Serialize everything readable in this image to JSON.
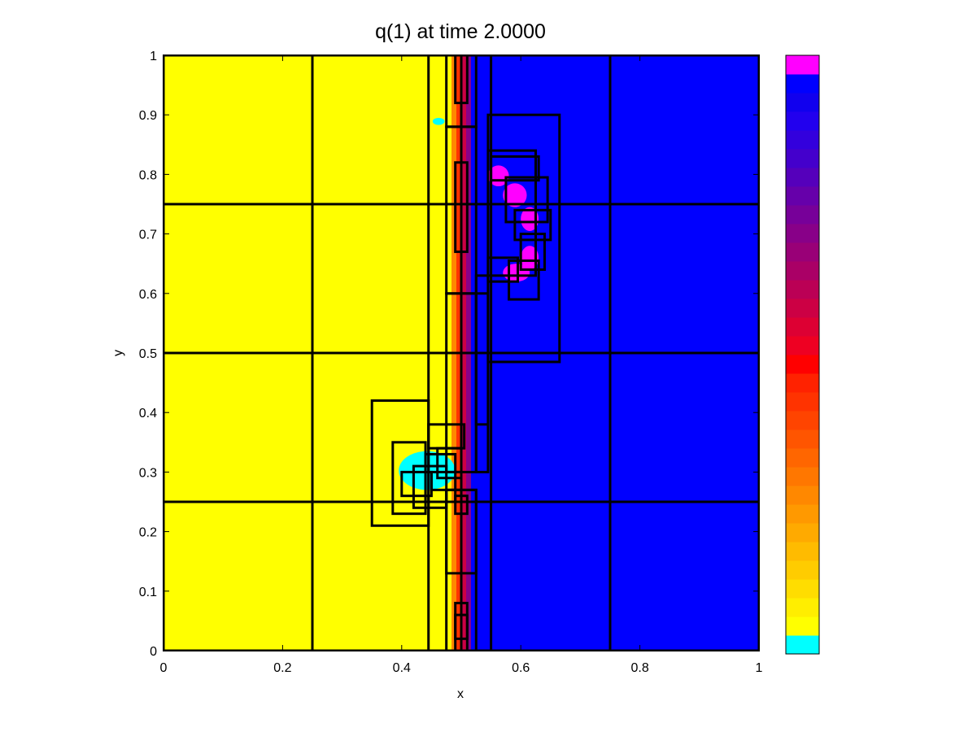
{
  "chart_data": {
    "type": "heatmap",
    "title": "q(1) at time   2.0000",
    "xlabel": "x",
    "ylabel": "y",
    "xlim": [
      0,
      1
    ],
    "ylim": [
      0,
      1
    ],
    "xticks": [
      "0",
      "0.2",
      "0.4",
      "0.6",
      "0.8",
      "1"
    ],
    "yticks": [
      "0",
      "0.1",
      "0.2",
      "0.3",
      "0.4",
      "0.5",
      "0.6",
      "0.7",
      "0.8",
      "0.9",
      "1"
    ],
    "grid": false,
    "colorbar": {
      "colors": [
        "#00ffff",
        "#ffff00",
        "#ffee00",
        "#ffdd00",
        "#ffcc00",
        "#ffbb00",
        "#ffaa00",
        "#ff9900",
        "#ff8800",
        "#ff7700",
        "#ff6600",
        "#ff5500",
        "#ff4400",
        "#ff3300",
        "#ff2200",
        "#ff0000",
        "#ee0022",
        "#dd0033",
        "#cc0044",
        "#bb0055",
        "#aa0066",
        "#990077",
        "#880088",
        "#770099",
        "#6600aa",
        "#5500bb",
        "#4400cc",
        "#3300dd",
        "#2200ee",
        "#1100ee",
        "#0000ff",
        "#ff00ff"
      ]
    },
    "regions": [
      {
        "name": "left-state",
        "color": "#ffff00",
        "x": [
          0,
          0.505
        ],
        "y": [
          0,
          1
        ]
      },
      {
        "name": "right-state",
        "color": "#0000ff",
        "x": [
          0.505,
          1
        ],
        "y": [
          0,
          1
        ]
      }
    ],
    "features": [
      {
        "name": "shear-front",
        "colors": [
          "#ff8800",
          "#ff3300",
          "#cc0044",
          "#880088"
        ],
        "x": 0.5,
        "y": [
          0,
          1
        ]
      },
      {
        "name": "magenta-blob-1",
        "color": "#ff00ff",
        "x": [
          0.545,
          0.58
        ],
        "y": [
          0.78,
          0.815
        ]
      },
      {
        "name": "magenta-blob-2",
        "color": "#ff00ff",
        "x": [
          0.57,
          0.61
        ],
        "y": [
          0.745,
          0.785
        ]
      },
      {
        "name": "magenta-blob-3",
        "color": "#ff00ff",
        "x": [
          0.6,
          0.63
        ],
        "y": [
          0.705,
          0.745
        ]
      },
      {
        "name": "magenta-blob-4",
        "color": "#ff00ff",
        "x": [
          0.6,
          0.63
        ],
        "y": [
          0.64,
          0.68
        ]
      },
      {
        "name": "magenta-blob-5",
        "color": "#ff00ff",
        "x": [
          0.57,
          0.615
        ],
        "y": [
          0.62,
          0.65
        ]
      },
      {
        "name": "cyan-streak",
        "color": "#00ffff",
        "x": [
          0.395,
          0.49
        ],
        "y": [
          0.27,
          0.335
        ]
      },
      {
        "name": "cyan-dot",
        "color": "#00ffff",
        "x": [
          0.452,
          0.472
        ],
        "y": [
          0.883,
          0.895
        ]
      }
    ],
    "amr_patches": [
      [
        0,
        0,
        0.25,
        0.25
      ],
      [
        0.25,
        0,
        0.5,
        0.25
      ],
      [
        0.5,
        0,
        0.75,
        0.25
      ],
      [
        0.75,
        0,
        1,
        0.25
      ],
      [
        0,
        0.25,
        0.25,
        0.5
      ],
      [
        0.25,
        0.25,
        0.5,
        0.5
      ],
      [
        0.5,
        0.25,
        0.75,
        0.5
      ],
      [
        0.75,
        0.25,
        1,
        0.5
      ],
      [
        0,
        0.5,
        0.25,
        0.75
      ],
      [
        0.25,
        0.5,
        0.5,
        0.75
      ],
      [
        0.5,
        0.5,
        0.75,
        0.75
      ],
      [
        0.75,
        0.5,
        1,
        0.75
      ],
      [
        0,
        0.75,
        0.25,
        1
      ],
      [
        0.25,
        0.75,
        0.5,
        1
      ],
      [
        0.5,
        0.75,
        0.75,
        1
      ],
      [
        0.75,
        0.75,
        1,
        1
      ],
      [
        0.445,
        0,
        0.55,
        1
      ],
      [
        0.475,
        0,
        0.525,
        0.27
      ],
      [
        0.475,
        0.13,
        0.525,
        0.27
      ],
      [
        0.475,
        0.3,
        0.525,
        0.6
      ],
      [
        0.475,
        0.6,
        0.525,
        0.88
      ],
      [
        0.475,
        0.88,
        0.525,
        1
      ],
      [
        0.49,
        0,
        0.51,
        0.08
      ],
      [
        0.49,
        0.02,
        0.51,
        0.06
      ],
      [
        0.49,
        0.23,
        0.51,
        0.26
      ],
      [
        0.49,
        0.67,
        0.51,
        0.82
      ],
      [
        0.49,
        0.92,
        0.51,
        1
      ],
      [
        0.545,
        0.485,
        0.665,
        0.9
      ],
      [
        0.545,
        0.63,
        0.625,
        0.84
      ],
      [
        0.55,
        0.79,
        0.63,
        0.83
      ],
      [
        0.575,
        0.72,
        0.645,
        0.795
      ],
      [
        0.59,
        0.69,
        0.65,
        0.74
      ],
      [
        0.6,
        0.64,
        0.64,
        0.7
      ],
      [
        0.58,
        0.59,
        0.63,
        0.655
      ],
      [
        0.545,
        0.62,
        0.595,
        0.66
      ],
      [
        0.525,
        0.3,
        0.545,
        0.63
      ],
      [
        0.525,
        0.38,
        0.545,
        0.6
      ],
      [
        0.35,
        0.21,
        0.445,
        0.42
      ],
      [
        0.385,
        0.23,
        0.44,
        0.35
      ],
      [
        0.42,
        0.24,
        0.475,
        0.31
      ],
      [
        0.44,
        0.25,
        0.49,
        0.33
      ],
      [
        0.4,
        0.26,
        0.45,
        0.3
      ],
      [
        0.46,
        0.29,
        0.5,
        0.34
      ],
      [
        0.45,
        0.27,
        0.5,
        0.3
      ],
      [
        0.445,
        0.34,
        0.505,
        0.38
      ]
    ]
  }
}
